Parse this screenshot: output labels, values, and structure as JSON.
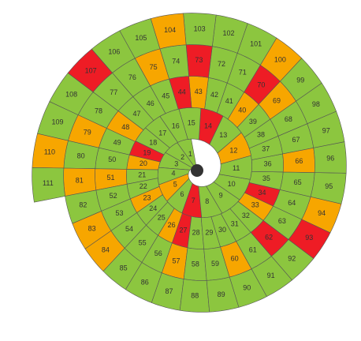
{
  "spiral": {
    "cells": [
      {
        "label": 1,
        "color": "#8cc63f"
      },
      {
        "label": 2,
        "color": "#8cc63f"
      },
      {
        "label": 3,
        "color": "#8cc63f"
      },
      {
        "label": 4,
        "color": "#8cc63f"
      },
      {
        "label": 5,
        "color": "#f7a600"
      },
      {
        "label": 6,
        "color": "#8cc63f"
      },
      {
        "label": 7,
        "color": "#ee1c25"
      },
      {
        "label": 8,
        "color": "#8cc63f"
      },
      {
        "label": 9,
        "color": "#8cc63f"
      },
      {
        "label": 10,
        "color": "#8cc63f"
      },
      {
        "label": 11,
        "color": "#8cc63f"
      },
      {
        "label": 12,
        "color": "#f7a600"
      },
      {
        "label": 13,
        "color": "#8cc63f"
      },
      {
        "label": 14,
        "color": "#ee1c25"
      },
      {
        "label": 15,
        "color": "#8cc63f"
      },
      {
        "label": 16,
        "color": "#8cc63f"
      },
      {
        "label": 17,
        "color": "#8cc63f"
      },
      {
        "label": 18,
        "color": "#8cc63f"
      },
      {
        "label": 19,
        "color": "#ee1c25"
      },
      {
        "label": 20,
        "color": "#f7a600"
      },
      {
        "label": 21,
        "color": "#8cc63f"
      },
      {
        "label": 22,
        "color": "#8cc63f"
      },
      {
        "label": 23,
        "color": "#f7a600"
      },
      {
        "label": 24,
        "color": "#8cc63f"
      },
      {
        "label": 25,
        "color": "#8cc63f"
      },
      {
        "label": 26,
        "color": "#f7a600"
      },
      {
        "label": 27,
        "color": "#ee1c25"
      },
      {
        "label": 28,
        "color": "#8cc63f"
      },
      {
        "label": 29,
        "color": "#8cc63f"
      },
      {
        "label": 30,
        "color": "#8cc63f"
      },
      {
        "label": 31,
        "color": "#8cc63f"
      },
      {
        "label": 32,
        "color": "#8cc63f"
      },
      {
        "label": 33,
        "color": "#f7a600"
      },
      {
        "label": 34,
        "color": "#ee1c25"
      },
      {
        "label": 35,
        "color": "#8cc63f"
      },
      {
        "label": 36,
        "color": "#8cc63f"
      },
      {
        "label": 37,
        "color": "#8cc63f"
      },
      {
        "label": 38,
        "color": "#8cc63f"
      },
      {
        "label": 39,
        "color": "#8cc63f"
      },
      {
        "label": 40,
        "color": "#f7a600"
      },
      {
        "label": 41,
        "color": "#8cc63f"
      },
      {
        "label": 42,
        "color": "#8cc63f"
      },
      {
        "label": 43,
        "color": "#f7a600"
      },
      {
        "label": 44,
        "color": "#ee1c25"
      },
      {
        "label": 45,
        "color": "#8cc63f"
      },
      {
        "label": 46,
        "color": "#8cc63f"
      },
      {
        "label": 47,
        "color": "#8cc63f"
      },
      {
        "label": 48,
        "color": "#f7a600"
      },
      {
        "label": 49,
        "color": "#8cc63f"
      },
      {
        "label": 50,
        "color": "#8cc63f"
      },
      {
        "label": 51,
        "color": "#f7a600"
      },
      {
        "label": 52,
        "color": "#8cc63f"
      },
      {
        "label": 53,
        "color": "#8cc63f"
      },
      {
        "label": 54,
        "color": "#8cc63f"
      },
      {
        "label": 55,
        "color": "#8cc63f"
      },
      {
        "label": 56,
        "color": "#8cc63f"
      },
      {
        "label": 57,
        "color": "#f7a600"
      },
      {
        "label": 58,
        "color": "#8cc63f"
      },
      {
        "label": 59,
        "color": "#8cc63f"
      },
      {
        "label": 60,
        "color": "#f7a600"
      },
      {
        "label": 61,
        "color": "#8cc63f"
      },
      {
        "label": 62,
        "color": "#ee1c25"
      },
      {
        "label": 63,
        "color": "#8cc63f"
      },
      {
        "label": 64,
        "color": "#8cc63f"
      },
      {
        "label": 65,
        "color": "#8cc63f"
      },
      {
        "label": 66,
        "color": "#f7a600"
      },
      {
        "label": 67,
        "color": "#8cc63f"
      },
      {
        "label": 68,
        "color": "#8cc63f"
      },
      {
        "label": 69,
        "color": "#f7a600"
      },
      {
        "label": 70,
        "color": "#ee1c25"
      },
      {
        "label": 71,
        "color": "#8cc63f"
      },
      {
        "label": 72,
        "color": "#8cc63f"
      },
      {
        "label": 73,
        "color": "#ee1c25"
      },
      {
        "label": 74,
        "color": "#8cc63f"
      },
      {
        "label": 75,
        "color": "#f7a600"
      },
      {
        "label": 76,
        "color": "#8cc63f"
      },
      {
        "label": 77,
        "color": "#8cc63f"
      },
      {
        "label": 78,
        "color": "#8cc63f"
      },
      {
        "label": 79,
        "color": "#f7a600"
      },
      {
        "label": 80,
        "color": "#8cc63f"
      },
      {
        "label": 81,
        "color": "#f7a600"
      },
      {
        "label": 82,
        "color": "#8cc63f"
      },
      {
        "label": 83,
        "color": "#f7a600"
      },
      {
        "label": 84,
        "color": "#f7a600"
      },
      {
        "label": 85,
        "color": "#8cc63f"
      },
      {
        "label": 86,
        "color": "#8cc63f"
      },
      {
        "label": 87,
        "color": "#8cc63f"
      },
      {
        "label": 88,
        "color": "#8cc63f"
      },
      {
        "label": 89,
        "color": "#8cc63f"
      },
      {
        "label": 90,
        "color": "#8cc63f"
      },
      {
        "label": 91,
        "color": "#8cc63f"
      },
      {
        "label": 92,
        "color": "#8cc63f"
      },
      {
        "label": 93,
        "color": "#ee1c25"
      },
      {
        "label": 94,
        "color": "#f7a600"
      },
      {
        "label": 95,
        "color": "#8cc63f"
      },
      {
        "label": 96,
        "color": "#8cc63f"
      },
      {
        "label": 97,
        "color": "#8cc63f"
      },
      {
        "label": 98,
        "color": "#8cc63f"
      },
      {
        "label": 99,
        "color": "#8cc63f"
      },
      {
        "label": 100,
        "color": "#f7a600"
      },
      {
        "label": 101,
        "color": "#8cc63f"
      },
      {
        "label": 102,
        "color": "#8cc63f"
      },
      {
        "label": 103,
        "color": "#8cc63f"
      },
      {
        "label": 104,
        "color": "#f7a600"
      },
      {
        "label": 105,
        "color": "#8cc63f"
      },
      {
        "label": 106,
        "color": "#8cc63f"
      },
      {
        "label": 107,
        "color": "#ee1c25"
      },
      {
        "label": 108,
        "color": "#8cc63f"
      },
      {
        "label": 109,
        "color": "#8cc63f"
      },
      {
        "label": 110,
        "color": "#f7a600"
      },
      {
        "label": 111,
        "color": "#8cc63f"
      }
    ]
  }
}
